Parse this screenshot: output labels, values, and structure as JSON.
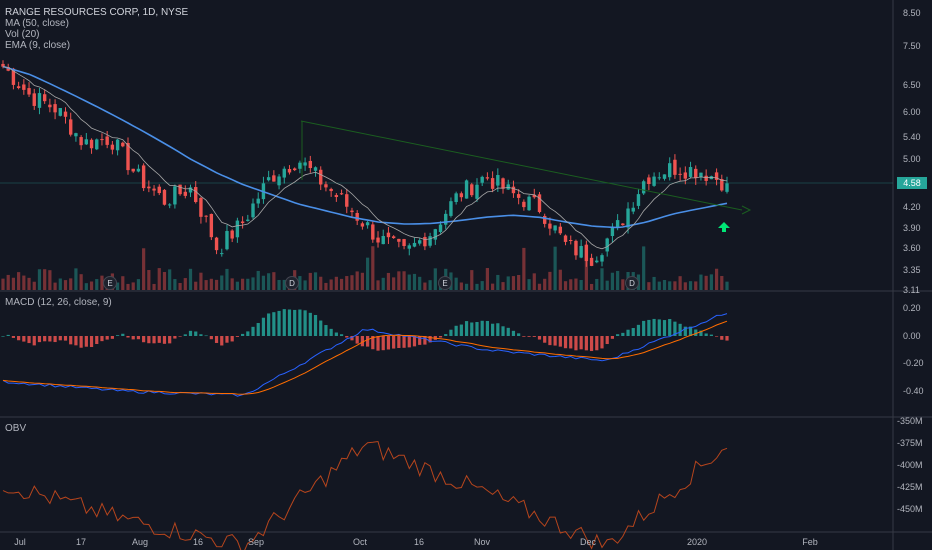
{
  "header": {
    "symbol": "RANGE RESOURCES CORP, 1D, NYSE",
    "ind_ma": "MA (50, close)",
    "ind_vol": "Vol (20)",
    "ind_ema": "EMA (9, close)",
    "macd_label": "MACD (12, 26, close, 9)",
    "obv_label": "OBV"
  },
  "last_price": "4.58",
  "colors": {
    "up": "#26a69a",
    "down": "#ef5350",
    "ma": "#4a8fe7",
    "ema": "#a7a7a7",
    "macd_line": "#2962ff",
    "signal_line": "#ff6d00",
    "obv_line": "#b6451d",
    "trendline": "#1b5e20",
    "arrow": "#00e676"
  },
  "x_axis": [
    "Jul",
    "17",
    "Aug",
    "16",
    "Sep",
    "Oct",
    "16",
    "Nov",
    "Dec",
    "2020",
    "Feb"
  ],
  "event_markers": [
    "E",
    "D",
    "E",
    "D"
  ],
  "chart_data": [
    {
      "type": "candlestick",
      "title": "RANGE RESOURCES CORP, 1D, NYSE",
      "y_ticks": [
        "8.50",
        "7.50",
        "6.50",
        "6.00",
        "5.40",
        "5.00",
        "4.58",
        "4.20",
        "3.90",
        "3.60",
        "3.35",
        "3.11"
      ],
      "y_scale": "log",
      "ylim": [
        3.11,
        8.5
      ],
      "price_points": [
        [
          "Jul 1",
          7.0
        ],
        [
          "Jul 8",
          6.3
        ],
        [
          "Jul 15",
          6.0
        ],
        [
          "Jul 22",
          5.3
        ],
        [
          "Jul 29",
          5.4
        ],
        [
          "Aug 5",
          4.7
        ],
        [
          "Aug 12",
          4.3
        ],
        [
          "Aug 19",
          4.5
        ],
        [
          "Aug 26",
          3.6
        ],
        [
          "Sep 3",
          4.0
        ],
        [
          "Sep 10",
          4.7
        ],
        [
          "Sep 17",
          5.0
        ],
        [
          "Sep 24",
          4.55
        ],
        [
          "Oct 1",
          4.15
        ],
        [
          "Oct 8",
          3.75
        ],
        [
          "Oct 15",
          3.55
        ],
        [
          "Oct 22",
          3.85
        ],
        [
          "Oct 29",
          4.4
        ],
        [
          "Nov 5",
          4.7
        ],
        [
          "Nov 12",
          4.4
        ],
        [
          "Nov 19",
          4.2
        ],
        [
          "Nov 26",
          3.65
        ],
        [
          "Dec 3",
          3.5
        ],
        [
          "Dec 10",
          3.95
        ],
        [
          "Dec 17",
          4.7
        ],
        [
          "Dec 24",
          4.85
        ],
        [
          "Dec 31",
          4.8
        ],
        [
          "Jan 7",
          4.58
        ]
      ],
      "overlays": [
        "MA (50, close)",
        "EMA (9, close)",
        "Vol (20)"
      ],
      "annotations": [
        "descending trendline",
        "green up arrow"
      ]
    },
    {
      "type": "line",
      "title": "MACD (12, 26, close, 9)",
      "y_ticks": [
        "0.20",
        "0.00",
        "-0.20",
        "-0.40"
      ],
      "ylim": [
        -0.5,
        0.25
      ],
      "x": [
        "Jul",
        "Aug",
        "Sep",
        "Oct",
        "Nov",
        "Dec",
        "Jan"
      ],
      "series": [
        {
          "name": "",
          "values": [
            -0.33,
            -0.4,
            -0.43,
            0.05,
            -0.1,
            -0.18,
            0.17
          ]
        }
      ]
    },
    {
      "type": "line",
      "title": "OBV",
      "y_ticks": [
        "-350M",
        "-375M",
        "-400M",
        "-425M",
        "-450M",
        "-475M"
      ],
      "ylim": [
        "-485M",
        "-345M"
      ],
      "x": [
        "Jul",
        "Aug",
        "Sep",
        "Oct",
        "Nov",
        "Dec",
        "Jan"
      ],
      "series": [
        {
          "name": "OBV",
          "values": [
            -400,
            -440,
            -470,
            -355,
            -410,
            -470,
            -355
          ]
        }
      ]
    }
  ]
}
